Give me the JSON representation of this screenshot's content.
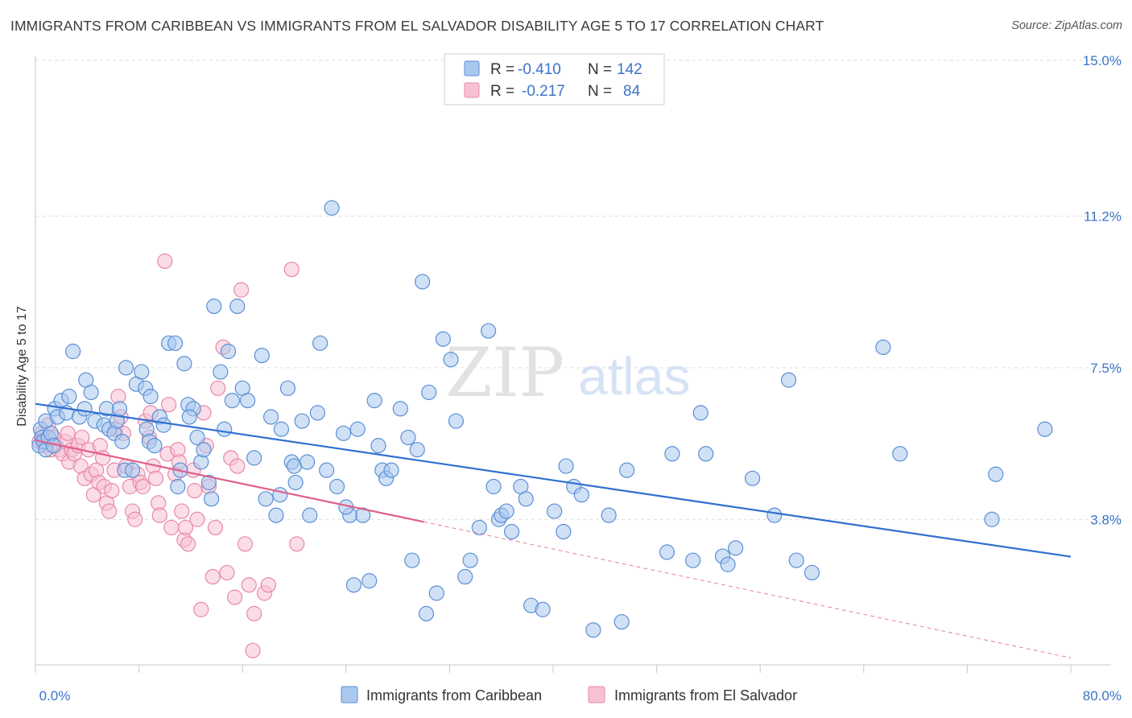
{
  "title": "IMMIGRANTS FROM CARIBBEAN VS IMMIGRANTS FROM EL SALVADOR DISABILITY AGE 5 TO 17 CORRELATION CHART",
  "source": "Source: ZipAtlas.com",
  "watermark": {
    "zip": "ZIP",
    "atlas": "atlas"
  },
  "colors": {
    "blue_fill": "#aac8ee",
    "blue_stroke": "#5b8fd6",
    "blue_line": "#2f6fd0",
    "pink_fill": "#f7c1d3",
    "pink_stroke": "#e888a8",
    "pink_line": "#e0608a",
    "grid": "#dcdcdc",
    "tick_text": "#3b74c8"
  },
  "legend": {
    "rows": [
      {
        "r_label": "R =",
        "r_value": "-0.410",
        "n_label": "N =",
        "n_value": "142"
      },
      {
        "r_label": "R =",
        "r_value": "-0.217",
        "n_label": "N =",
        "n_value": "84"
      }
    ]
  },
  "chart_data": {
    "type": "scatter",
    "title": "IMMIGRANTS FROM CARIBBEAN VS IMMIGRANTS FROM EL SALVADOR DISABILITY AGE 5 TO 17 CORRELATION CHART",
    "xlabel": "",
    "ylabel": "Disability Age 5 to 17",
    "xlim": [
      0,
      80
    ],
    "ylim": [
      0.25,
      15.0
    ],
    "x_tick_labels": [
      "0.0%",
      "80.0%"
    ],
    "y_ticks": [
      3.8,
      7.5,
      11.2,
      15.0
    ],
    "y_tick_labels": [
      "3.8%",
      "7.5%",
      "11.2%",
      "15.0%"
    ],
    "legend_position": "top-center",
    "series": [
      {
        "name": "Immigrants from Caribbean",
        "color": "blue",
        "r": -0.41,
        "n": 142,
        "trend": {
          "x": [
            0,
            80
          ],
          "y": [
            6.62,
            2.89
          ]
        },
        "points": [
          [
            0.3,
            5.6
          ],
          [
            0.4,
            6.0
          ],
          [
            0.5,
            5.8
          ],
          [
            0.6,
            5.7
          ],
          [
            0.8,
            5.5
          ],
          [
            0.8,
            6.2
          ],
          [
            1.0,
            5.8
          ],
          [
            1.2,
            5.9
          ],
          [
            1.4,
            5.6
          ],
          [
            1.5,
            6.5
          ],
          [
            1.7,
            6.3
          ],
          [
            2.0,
            6.7
          ],
          [
            2.4,
            6.4
          ],
          [
            2.6,
            6.8
          ],
          [
            2.9,
            7.9
          ],
          [
            3.4,
            6.3
          ],
          [
            3.8,
            6.5
          ],
          [
            3.9,
            7.2
          ],
          [
            4.3,
            6.9
          ],
          [
            4.6,
            6.2
          ],
          [
            5.3,
            6.1
          ],
          [
            5.5,
            6.5
          ],
          [
            5.7,
            6.0
          ],
          [
            6.1,
            5.9
          ],
          [
            6.3,
            6.2
          ],
          [
            6.5,
            6.5
          ],
          [
            6.9,
            5.0
          ],
          [
            7.0,
            7.5
          ],
          [
            7.5,
            5.0
          ],
          [
            7.8,
            7.1
          ],
          [
            8.2,
            7.4
          ],
          [
            8.5,
            7.0
          ],
          [
            8.6,
            6.0
          ],
          [
            8.8,
            5.7
          ],
          [
            9.2,
            5.6
          ],
          [
            9.6,
            6.3
          ],
          [
            9.9,
            6.1
          ],
          [
            10.3,
            8.1
          ],
          [
            10.8,
            8.1
          ],
          [
            11.0,
            4.6
          ],
          [
            11.2,
            5.0
          ],
          [
            11.5,
            7.6
          ],
          [
            11.8,
            6.6
          ],
          [
            12.2,
            6.5
          ],
          [
            12.5,
            5.8
          ],
          [
            12.8,
            5.2
          ],
          [
            13.0,
            5.5
          ],
          [
            13.4,
            4.7
          ],
          [
            13.6,
            4.3
          ],
          [
            13.8,
            9.0
          ],
          [
            14.3,
            7.4
          ],
          [
            14.6,
            6.0
          ],
          [
            14.9,
            7.9
          ],
          [
            15.6,
            9.0
          ],
          [
            16.0,
            7.0
          ],
          [
            16.4,
            6.7
          ],
          [
            16.9,
            5.3
          ],
          [
            17.5,
            7.8
          ],
          [
            17.8,
            4.3
          ],
          [
            18.2,
            6.3
          ],
          [
            18.6,
            3.9
          ],
          [
            18.9,
            4.4
          ],
          [
            19.0,
            6.0
          ],
          [
            19.5,
            7.0
          ],
          [
            19.8,
            5.2
          ],
          [
            20.0,
            5.1
          ],
          [
            20.6,
            6.2
          ],
          [
            21.0,
            5.2
          ],
          [
            21.2,
            3.9
          ],
          [
            21.8,
            6.4
          ],
          [
            22.0,
            8.1
          ],
          [
            22.5,
            5.0
          ],
          [
            22.9,
            11.4
          ],
          [
            23.3,
            4.6
          ],
          [
            23.8,
            5.9
          ],
          [
            24.3,
            3.9
          ],
          [
            24.6,
            2.2
          ],
          [
            24.9,
            6.0
          ],
          [
            25.3,
            3.9
          ],
          [
            25.8,
            2.3
          ],
          [
            26.2,
            6.7
          ],
          [
            26.5,
            5.6
          ],
          [
            26.8,
            5.0
          ],
          [
            27.1,
            4.8
          ],
          [
            27.5,
            5.0
          ],
          [
            28.2,
            6.5
          ],
          [
            28.8,
            5.8
          ],
          [
            29.1,
            2.8
          ],
          [
            29.5,
            5.5
          ],
          [
            29.9,
            9.6
          ],
          [
            30.4,
            6.9
          ],
          [
            31.0,
            2.0
          ],
          [
            31.5,
            8.2
          ],
          [
            32.1,
            7.7
          ],
          [
            32.5,
            6.2
          ],
          [
            33.2,
            2.4
          ],
          [
            33.6,
            2.8
          ],
          [
            34.3,
            3.6
          ],
          [
            35.0,
            8.4
          ],
          [
            35.4,
            4.6
          ],
          [
            35.8,
            3.8
          ],
          [
            36.0,
            3.9
          ],
          [
            36.4,
            4.0
          ],
          [
            36.8,
            3.5
          ],
          [
            37.5,
            4.6
          ],
          [
            37.9,
            4.3
          ],
          [
            38.3,
            1.7
          ],
          [
            39.2,
            1.6
          ],
          [
            40.1,
            4.0
          ],
          [
            40.8,
            3.5
          ],
          [
            41.0,
            5.1
          ],
          [
            41.6,
            4.6
          ],
          [
            42.2,
            4.4
          ],
          [
            43.1,
            1.1
          ],
          [
            44.3,
            3.9
          ],
          [
            45.3,
            1.3
          ],
          [
            45.7,
            5.0
          ],
          [
            48.8,
            3.0
          ],
          [
            49.2,
            5.4
          ],
          [
            50.8,
            2.8
          ],
          [
            51.4,
            6.4
          ],
          [
            51.8,
            5.4
          ],
          [
            53.1,
            2.9
          ],
          [
            53.5,
            2.7
          ],
          [
            54.1,
            3.1
          ],
          [
            55.4,
            4.8
          ],
          [
            57.1,
            3.9
          ],
          [
            58.2,
            7.2
          ],
          [
            58.8,
            2.8
          ],
          [
            60.0,
            2.5
          ],
          [
            65.5,
            8.0
          ],
          [
            66.8,
            5.4
          ],
          [
            73.9,
            3.8
          ],
          [
            74.2,
            4.9
          ],
          [
            78.0,
            6.0
          ],
          [
            6.7,
            5.7
          ],
          [
            8.9,
            6.8
          ],
          [
            15.2,
            6.7
          ],
          [
            11.9,
            6.3
          ],
          [
            20.1,
            4.7
          ],
          [
            30.2,
            1.5
          ],
          [
            24.0,
            4.1
          ]
        ]
      },
      {
        "name": "Immigrants from El Salvador",
        "color": "pink",
        "r": -0.217,
        "n": 84,
        "trend": {
          "x": [
            0,
            30
          ],
          "y": [
            5.73,
            3.74
          ]
        },
        "trend_extension": {
          "x": [
            30,
            80
          ],
          "y": [
            3.74,
            0.42
          ]
        },
        "points": [
          [
            0.3,
            5.7
          ],
          [
            0.5,
            5.9
          ],
          [
            0.7,
            5.8
          ],
          [
            0.8,
            5.6
          ],
          [
            1.0,
            6.1
          ],
          [
            1.2,
            5.5
          ],
          [
            1.4,
            5.8
          ],
          [
            1.6,
            5.6
          ],
          [
            1.8,
            5.5
          ],
          [
            2.1,
            5.4
          ],
          [
            2.3,
            5.7
          ],
          [
            2.5,
            5.9
          ],
          [
            2.6,
            5.2
          ],
          [
            2.8,
            5.5
          ],
          [
            3.0,
            5.4
          ],
          [
            3.3,
            5.6
          ],
          [
            3.5,
            5.1
          ],
          [
            3.6,
            5.8
          ],
          [
            3.8,
            4.8
          ],
          [
            4.1,
            5.5
          ],
          [
            4.3,
            4.9
          ],
          [
            4.5,
            4.4
          ],
          [
            4.7,
            5.0
          ],
          [
            4.9,
            4.7
          ],
          [
            5.0,
            5.6
          ],
          [
            5.2,
            5.3
          ],
          [
            5.3,
            4.6
          ],
          [
            5.5,
            4.2
          ],
          [
            5.7,
            4.0
          ],
          [
            5.9,
            4.5
          ],
          [
            6.1,
            5.0
          ],
          [
            6.2,
            6.0
          ],
          [
            6.4,
            6.8
          ],
          [
            6.6,
            6.3
          ],
          [
            6.8,
            5.9
          ],
          [
            7.0,
            5.1
          ],
          [
            7.3,
            4.6
          ],
          [
            7.5,
            4.0
          ],
          [
            7.7,
            3.8
          ],
          [
            7.9,
            4.9
          ],
          [
            8.1,
            4.7
          ],
          [
            8.3,
            4.6
          ],
          [
            8.5,
            6.2
          ],
          [
            8.8,
            5.8
          ],
          [
            8.9,
            6.4
          ],
          [
            9.1,
            5.1
          ],
          [
            9.3,
            4.8
          ],
          [
            9.5,
            4.2
          ],
          [
            9.6,
            3.9
          ],
          [
            10.0,
            10.1
          ],
          [
            10.2,
            5.4
          ],
          [
            10.3,
            6.6
          ],
          [
            10.5,
            3.6
          ],
          [
            10.8,
            4.9
          ],
          [
            11.0,
            5.5
          ],
          [
            11.1,
            5.2
          ],
          [
            11.3,
            4.0
          ],
          [
            11.5,
            3.3
          ],
          [
            11.6,
            3.6
          ],
          [
            11.8,
            3.2
          ],
          [
            12.2,
            5.0
          ],
          [
            12.3,
            4.5
          ],
          [
            12.5,
            3.8
          ],
          [
            12.8,
            1.6
          ],
          [
            13.0,
            6.4
          ],
          [
            13.2,
            5.6
          ],
          [
            13.4,
            4.6
          ],
          [
            13.7,
            2.4
          ],
          [
            13.9,
            3.6
          ],
          [
            14.1,
            7.0
          ],
          [
            14.5,
            8.0
          ],
          [
            14.8,
            2.5
          ],
          [
            15.1,
            5.3
          ],
          [
            15.4,
            1.9
          ],
          [
            15.6,
            5.1
          ],
          [
            15.9,
            9.4
          ],
          [
            16.2,
            3.2
          ],
          [
            16.5,
            2.2
          ],
          [
            16.8,
            0.6
          ],
          [
            16.9,
            1.5
          ],
          [
            17.7,
            2.0
          ],
          [
            18.0,
            2.2
          ],
          [
            19.8,
            9.9
          ],
          [
            20.2,
            3.2
          ]
        ]
      }
    ]
  },
  "bottom_legend": [
    {
      "label": "Immigrants from Caribbean"
    },
    {
      "label": "Immigrants from El Salvador"
    }
  ]
}
